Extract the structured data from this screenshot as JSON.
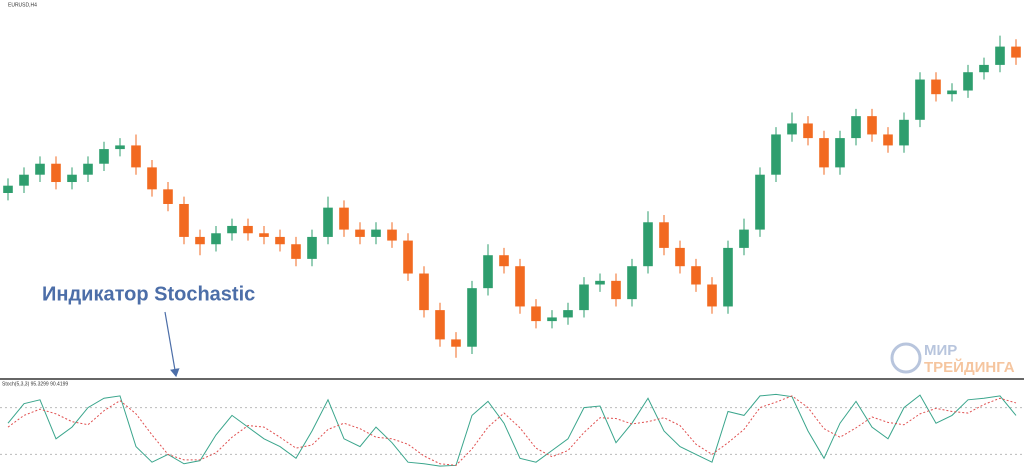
{
  "chart_data": [
    {
      "type": "candlestick",
      "title": "EURUSD,H4",
      "annotation": "Индикатор Stochastic",
      "open": [
        50,
        52,
        55,
        58,
        53,
        55,
        58,
        62,
        63,
        57,
        51,
        47,
        38,
        36,
        39,
        41,
        39,
        38,
        36,
        32,
        38,
        46,
        40,
        38,
        40,
        37,
        28,
        18,
        10,
        8,
        24,
        33,
        30,
        19,
        15,
        16,
        18,
        25,
        26,
        21,
        30,
        42,
        35,
        30,
        25,
        19,
        35,
        40,
        55,
        66,
        69,
        65,
        57,
        65,
        71,
        66,
        63,
        70,
        81,
        77,
        78,
        83,
        85,
        90
      ],
      "high": [
        54,
        57,
        60,
        60,
        57,
        60,
        64,
        65,
        66,
        59,
        53,
        49,
        40,
        41,
        43,
        43,
        41,
        40,
        38,
        40,
        49,
        48,
        42,
        42,
        42,
        39,
        30,
        20,
        12,
        26,
        36,
        35,
        32,
        21,
        18,
        20,
        27,
        28,
        28,
        32,
        45,
        44,
        37,
        32,
        27,
        37,
        43,
        57,
        68,
        72,
        71,
        67,
        67,
        73,
        73,
        68,
        72,
        83,
        83,
        80,
        85,
        87,
        93,
        92
      ],
      "low": [
        48,
        50,
        53,
        51,
        51,
        53,
        56,
        60,
        55,
        49,
        45,
        36,
        33,
        34,
        37,
        37,
        36,
        34,
        30,
        30,
        36,
        38,
        36,
        36,
        35,
        26,
        16,
        8,
        5,
        6,
        22,
        28,
        17,
        13,
        13,
        14,
        16,
        23,
        19,
        19,
        28,
        33,
        28,
        23,
        17,
        17,
        33,
        38,
        53,
        64,
        63,
        55,
        55,
        63,
        64,
        61,
        61,
        68,
        75,
        75,
        76,
        81,
        83,
        85
      ],
      "close": [
        52,
        55,
        58,
        53,
        55,
        58,
        62,
        63,
        57,
        51,
        47,
        38,
        36,
        39,
        41,
        39,
        38,
        36,
        32,
        38,
        46,
        40,
        38,
        40,
        37,
        28,
        18,
        10,
        8,
        24,
        33,
        30,
        19,
        15,
        16,
        18,
        25,
        26,
        21,
        30,
        42,
        35,
        30,
        25,
        19,
        35,
        40,
        55,
        66,
        69,
        65,
        57,
        65,
        71,
        66,
        63,
        70,
        81,
        77,
        78,
        83,
        85,
        90,
        87
      ],
      "up_color": "#2e9e6e",
      "down_color": "#f26a21",
      "ylim": [
        0,
        100
      ]
    },
    {
      "type": "line",
      "title": "Stoch(5,3,3) 95.3299 90.4199",
      "series": [
        {
          "color": "#3aa58c",
          "dash": false,
          "values": [
            60,
            85,
            90,
            40,
            55,
            80,
            92,
            95,
            30,
            10,
            20,
            8,
            12,
            45,
            70,
            55,
            40,
            30,
            15,
            50,
            90,
            40,
            30,
            55,
            35,
            10,
            8,
            5,
            6,
            70,
            88,
            60,
            15,
            10,
            25,
            40,
            80,
            82,
            35,
            60,
            92,
            50,
            30,
            20,
            10,
            75,
            70,
            95,
            97,
            94,
            50,
            15,
            60,
            88,
            55,
            40,
            80,
            96,
            60,
            70,
            90,
            92,
            95,
            70
          ]
        },
        {
          "color": "#e05050",
          "dash": true,
          "values": [
            55,
            70,
            78,
            72,
            62,
            58,
            76,
            89,
            72,
            45,
            20,
            13,
            13,
            22,
            42,
            57,
            55,
            42,
            28,
            32,
            52,
            60,
            53,
            42,
            40,
            33,
            18,
            8,
            6,
            27,
            55,
            73,
            54,
            28,
            17,
            25,
            48,
            67,
            66,
            59,
            62,
            67,
            57,
            33,
            20,
            35,
            52,
            80,
            87,
            95,
            80,
            53,
            42,
            54,
            68,
            61,
            58,
            72,
            79,
            75,
            73,
            84,
            92,
            86
          ]
        }
      ],
      "levels": [
        20,
        80
      ],
      "ylim": [
        0,
        100
      ]
    }
  ],
  "logo": {
    "line1": "МИР",
    "line2": "ТРЕЙДИНГА"
  }
}
